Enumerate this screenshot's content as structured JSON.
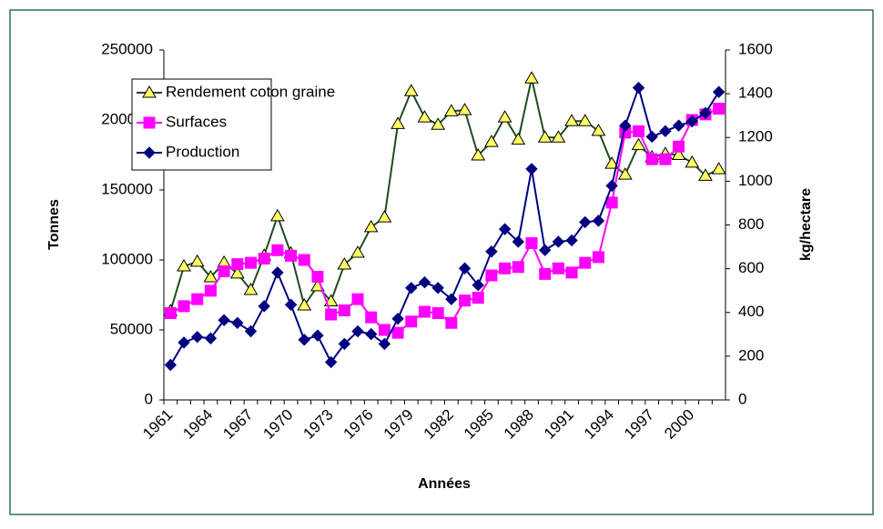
{
  "chart_data": {
    "type": "line",
    "categories": [
      "1961",
      null,
      null,
      "1964",
      null,
      null,
      "1967",
      null,
      null,
      "1970",
      null,
      null,
      "1973",
      null,
      null,
      "1976",
      null,
      null,
      "1979",
      null,
      null,
      "1982",
      null,
      null,
      "1985",
      null,
      null,
      "1988",
      null,
      null,
      "1991",
      null,
      null,
      "1994",
      null,
      null,
      "1997",
      null,
      null,
      "2000",
      null,
      null
    ],
    "x_label": "Années",
    "y_label": "Tonnes",
    "y2_label": "kg/hectare",
    "ylim": [
      0,
      250000
    ],
    "yticks": [
      0,
      50000,
      100000,
      150000,
      200000,
      250000
    ],
    "y2lim": [
      0,
      1600
    ],
    "y2ticks": [
      0,
      200,
      400,
      600,
      800,
      1000,
      1200,
      1400,
      1600
    ],
    "legend": "upper left",
    "series": [
      {
        "name": "Rendement coton graine",
        "color": "#1f4a1f",
        "marker_color": "#ffff66",
        "marker": "triangle",
        "axis": "y2",
        "values": [
          407,
          611,
          632,
          561,
          628,
          578,
          503,
          660,
          840,
          670,
          432,
          520,
          451,
          619,
          673,
          790,
          835,
          1262,
          1412,
          1292,
          1258,
          1320,
          1325,
          1118,
          1180,
          1292,
          1190,
          1470,
          1200,
          1200,
          1275,
          1275,
          1230,
          1080,
          1030,
          1165,
          1110,
          1125,
          1120,
          1085,
          1025,
          1055
        ]
      },
      {
        "name": "Surfaces",
        "color": "#ff00ff",
        "marker_color": "#ff00ff",
        "marker": "square",
        "values": [
          62000,
          67000,
          72000,
          78000,
          92000,
          97000,
          98000,
          101000,
          107000,
          103000,
          100000,
          88000,
          61000,
          64000,
          72000,
          59000,
          50000,
          48000,
          56000,
          63000,
          62000,
          55000,
          71000,
          73000,
          89000,
          94000,
          95000,
          112000,
          90000,
          94000,
          91000,
          98000,
          102000,
          141000,
          191000,
          192000,
          172000,
          172000,
          181000,
          200000,
          204000,
          208000
        ]
      },
      {
        "name": "Production",
        "color": "#000080",
        "marker_color": "#000080",
        "marker": "diamond",
        "values": [
          25000,
          41000,
          45000,
          44000,
          57000,
          55000,
          49000,
          67000,
          91000,
          68000,
          43000,
          46000,
          27000,
          40000,
          49000,
          47000,
          40000,
          58000,
          80000,
          84000,
          80000,
          72000,
          94000,
          82000,
          106000,
          122000,
          113000,
          165000,
          107000,
          113000,
          114000,
          127000,
          128000,
          153000,
          196000,
          223000,
          188000,
          192000,
          196000,
          199000,
          205000,
          220000
        ]
      }
    ]
  }
}
